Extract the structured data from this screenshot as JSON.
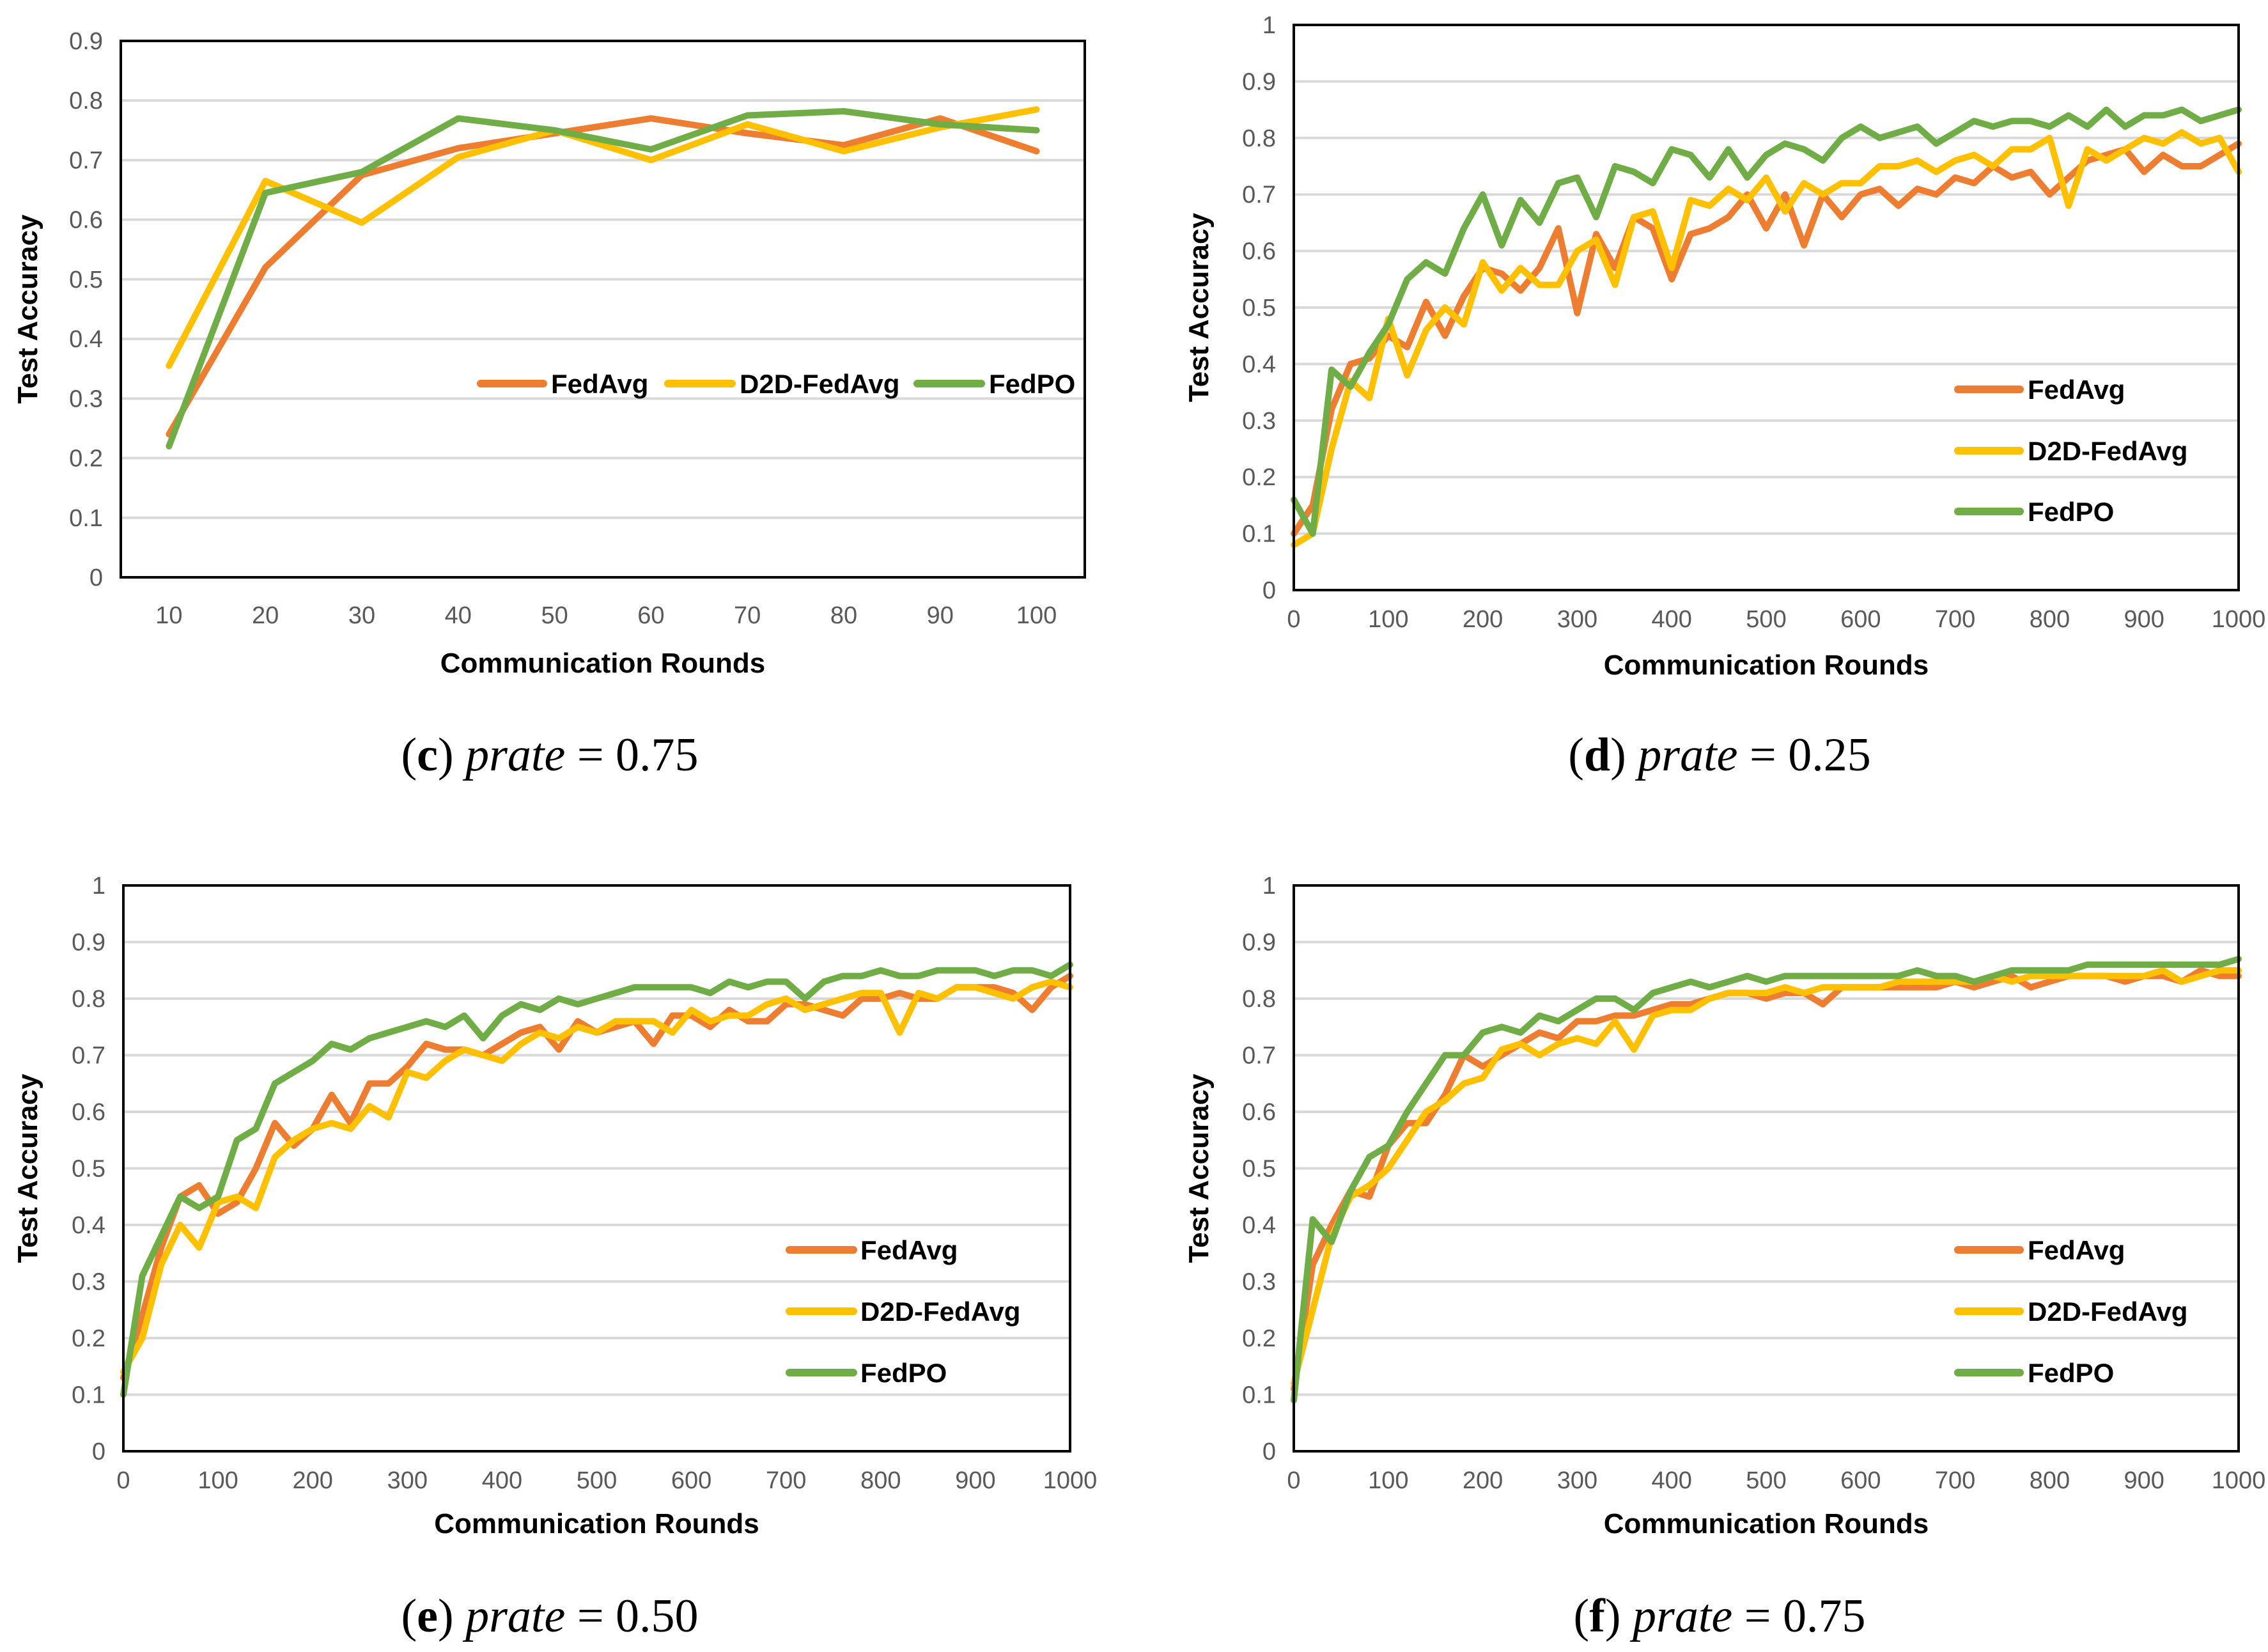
{
  "colors": {
    "FedAvg": "#ED7D31",
    "D2D-FedAvg": "#FFC000",
    "FedPO": "#70AD47",
    "grid": "#D9D9D9"
  },
  "chart_data": [
    {
      "id": "c",
      "type": "line",
      "caption": {
        "label": "c",
        "variable": "prate",
        "relation": "=",
        "value": "0.75"
      },
      "xlabel": "Communication Rounds",
      "ylabel": "Test Accuracy",
      "x_axis": "category",
      "categories": [
        "10",
        "20",
        "30",
        "40",
        "50",
        "60",
        "70",
        "80",
        "90",
        "100"
      ],
      "ylim": [
        0,
        0.9
      ],
      "yticks": [
        "0",
        "0.1",
        "0.2",
        "0.3",
        "0.4",
        "0.5",
        "0.6",
        "0.7",
        "0.8",
        "0.9"
      ],
      "grid": true,
      "legend": "center-right-horizontal",
      "series": [
        {
          "name": "FedAvg",
          "values": [
            0.24,
            0.52,
            0.675,
            0.72,
            0.745,
            0.77,
            0.745,
            0.725,
            0.77,
            0.715
          ]
        },
        {
          "name": "D2D-FedAvg",
          "values": [
            0.355,
            0.665,
            0.595,
            0.705,
            0.75,
            0.7,
            0.76,
            0.715,
            0.755,
            0.785
          ]
        },
        {
          "name": "FedPO",
          "values": [
            0.22,
            0.645,
            0.68,
            0.77,
            0.75,
            0.718,
            0.775,
            0.782,
            0.76,
            0.75
          ]
        }
      ]
    },
    {
      "id": "d",
      "type": "line",
      "caption": {
        "label": "d",
        "variable": "prate",
        "relation": "=",
        "value": "0.25"
      },
      "xlabel": "Communication Rounds",
      "ylabel": "Test Accuracy",
      "x_axis": "numeric",
      "xlim": [
        0,
        1000
      ],
      "x_start": 0,
      "x_step": 20,
      "xticks": [
        "0",
        "100",
        "200",
        "300",
        "400",
        "500",
        "600",
        "700",
        "800",
        "900",
        "1000"
      ],
      "ylim": [
        0,
        1
      ],
      "yticks": [
        "0",
        "0.1",
        "0.2",
        "0.3",
        "0.4",
        "0.5",
        "0.6",
        "0.7",
        "0.8",
        "0.9",
        "1"
      ],
      "grid": true,
      "legend": "right-vertical",
      "series": [
        {
          "name": "FedAvg",
          "values": [
            0.1,
            0.15,
            0.32,
            0.4,
            0.41,
            0.45,
            0.43,
            0.51,
            0.45,
            0.52,
            0.57,
            0.56,
            0.53,
            0.57,
            0.64,
            0.49,
            0.63,
            0.57,
            0.66,
            0.64,
            0.55,
            0.63,
            0.64,
            0.66,
            0.7,
            0.64,
            0.7,
            0.61,
            0.7,
            0.66,
            0.7,
            0.71,
            0.68,
            0.71,
            0.7,
            0.73,
            0.72,
            0.75,
            0.73,
            0.74,
            0.7,
            0.73,
            0.76,
            0.77,
            0.78,
            0.74,
            0.77,
            0.75,
            0.75,
            0.77,
            0.79
          ]
        },
        {
          "name": "D2D-FedAvg",
          "values": [
            0.08,
            0.1,
            0.25,
            0.37,
            0.34,
            0.48,
            0.38,
            0.46,
            0.5,
            0.47,
            0.58,
            0.53,
            0.57,
            0.54,
            0.54,
            0.6,
            0.62,
            0.54,
            0.66,
            0.67,
            0.57,
            0.69,
            0.68,
            0.71,
            0.69,
            0.73,
            0.67,
            0.72,
            0.7,
            0.72,
            0.72,
            0.75,
            0.75,
            0.76,
            0.74,
            0.76,
            0.77,
            0.75,
            0.78,
            0.78,
            0.8,
            0.68,
            0.78,
            0.76,
            0.78,
            0.8,
            0.79,
            0.81,
            0.79,
            0.8,
            0.74
          ]
        },
        {
          "name": "FedPO",
          "values": [
            0.16,
            0.1,
            0.39,
            0.36,
            0.42,
            0.47,
            0.55,
            0.58,
            0.56,
            0.64,
            0.7,
            0.61,
            0.69,
            0.65,
            0.72,
            0.73,
            0.66,
            0.75,
            0.74,
            0.72,
            0.78,
            0.77,
            0.73,
            0.78,
            0.73,
            0.77,
            0.79,
            0.78,
            0.76,
            0.8,
            0.82,
            0.8,
            0.81,
            0.82,
            0.79,
            0.81,
            0.83,
            0.82,
            0.83,
            0.83,
            0.82,
            0.84,
            0.82,
            0.85,
            0.82,
            0.84,
            0.84,
            0.85,
            0.83,
            0.84,
            0.85
          ]
        }
      ]
    },
    {
      "id": "e",
      "type": "line",
      "caption": {
        "label": "e",
        "variable": "prate",
        "relation": "=",
        "value": "0.50"
      },
      "xlabel": "Communication Rounds",
      "ylabel": "Test Accuracy",
      "x_axis": "numeric",
      "xlim": [
        0,
        1000
      ],
      "x_start": 0,
      "x_step": 20,
      "xticks": [
        "0",
        "100",
        "200",
        "300",
        "400",
        "500",
        "600",
        "700",
        "800",
        "900",
        "1000"
      ],
      "ylim": [
        0,
        1
      ],
      "yticks": [
        "0",
        "0.1",
        "0.2",
        "0.3",
        "0.4",
        "0.5",
        "0.6",
        "0.7",
        "0.8",
        "0.9",
        "1"
      ],
      "grid": true,
      "legend": "right-vertical",
      "series": [
        {
          "name": "FedAvg",
          "values": [
            0.13,
            0.24,
            0.36,
            0.45,
            0.47,
            0.42,
            0.44,
            0.5,
            0.58,
            0.54,
            0.57,
            0.63,
            0.58,
            0.65,
            0.65,
            0.68,
            0.72,
            0.71,
            0.71,
            0.7,
            0.72,
            0.74,
            0.75,
            0.71,
            0.76,
            0.74,
            0.75,
            0.76,
            0.72,
            0.77,
            0.77,
            0.75,
            0.78,
            0.76,
            0.76,
            0.79,
            0.79,
            0.78,
            0.77,
            0.8,
            0.8,
            0.81,
            0.8,
            0.8,
            0.82,
            0.82,
            0.82,
            0.81,
            0.78,
            0.82,
            0.84
          ]
        },
        {
          "name": "D2D-FedAvg",
          "values": [
            0.14,
            0.2,
            0.33,
            0.4,
            0.36,
            0.44,
            0.45,
            0.43,
            0.52,
            0.55,
            0.57,
            0.58,
            0.57,
            0.61,
            0.59,
            0.67,
            0.66,
            0.69,
            0.71,
            0.7,
            0.69,
            0.72,
            0.74,
            0.73,
            0.75,
            0.74,
            0.76,
            0.76,
            0.76,
            0.74,
            0.78,
            0.76,
            0.77,
            0.77,
            0.79,
            0.8,
            0.78,
            0.79,
            0.8,
            0.81,
            0.81,
            0.74,
            0.81,
            0.8,
            0.82,
            0.82,
            0.81,
            0.8,
            0.82,
            0.83,
            0.82
          ]
        },
        {
          "name": "FedPO",
          "values": [
            0.1,
            0.31,
            0.38,
            0.45,
            0.43,
            0.45,
            0.55,
            0.57,
            0.65,
            0.67,
            0.69,
            0.72,
            0.71,
            0.73,
            0.74,
            0.75,
            0.76,
            0.75,
            0.77,
            0.73,
            0.77,
            0.79,
            0.78,
            0.8,
            0.79,
            0.8,
            0.81,
            0.82,
            0.82,
            0.82,
            0.82,
            0.81,
            0.83,
            0.82,
            0.83,
            0.83,
            0.8,
            0.83,
            0.84,
            0.84,
            0.85,
            0.84,
            0.84,
            0.85,
            0.85,
            0.85,
            0.84,
            0.85,
            0.85,
            0.84,
            0.86
          ]
        }
      ]
    },
    {
      "id": "f",
      "type": "line",
      "caption": {
        "label": "f",
        "variable": "prate",
        "relation": "=",
        "value": "0.75"
      },
      "xlabel": "Communication Rounds",
      "ylabel": "Test Accuracy",
      "x_axis": "numeric",
      "xlim": [
        0,
        1000
      ],
      "x_start": 0,
      "x_step": 20,
      "xticks": [
        "0",
        "100",
        "200",
        "300",
        "400",
        "500",
        "600",
        "700",
        "800",
        "900",
        "1000"
      ],
      "ylim": [
        0,
        1
      ],
      "yticks": [
        "0",
        "0.1",
        "0.2",
        "0.3",
        "0.4",
        "0.5",
        "0.6",
        "0.7",
        "0.8",
        "0.9",
        "1"
      ],
      "grid": true,
      "legend": "right-vertical",
      "series": [
        {
          "name": "FedAvg",
          "values": [
            0.11,
            0.33,
            0.4,
            0.46,
            0.45,
            0.54,
            0.58,
            0.58,
            0.63,
            0.7,
            0.68,
            0.7,
            0.72,
            0.74,
            0.73,
            0.76,
            0.76,
            0.77,
            0.77,
            0.78,
            0.79,
            0.79,
            0.8,
            0.81,
            0.81,
            0.8,
            0.81,
            0.81,
            0.79,
            0.82,
            0.82,
            0.82,
            0.82,
            0.82,
            0.82,
            0.83,
            0.82,
            0.83,
            0.84,
            0.82,
            0.83,
            0.84,
            0.84,
            0.84,
            0.83,
            0.84,
            0.84,
            0.83,
            0.85,
            0.84,
            0.84
          ]
        },
        {
          "name": "D2D-FedAvg",
          "values": [
            0.12,
            0.25,
            0.38,
            0.45,
            0.47,
            0.5,
            0.55,
            0.6,
            0.62,
            0.65,
            0.66,
            0.71,
            0.72,
            0.7,
            0.72,
            0.73,
            0.72,
            0.76,
            0.71,
            0.77,
            0.78,
            0.78,
            0.8,
            0.81,
            0.81,
            0.81,
            0.82,
            0.81,
            0.82,
            0.82,
            0.82,
            0.82,
            0.83,
            0.83,
            0.83,
            0.83,
            0.83,
            0.84,
            0.83,
            0.84,
            0.84,
            0.84,
            0.84,
            0.84,
            0.84,
            0.84,
            0.85,
            0.83,
            0.84,
            0.85,
            0.85
          ]
        },
        {
          "name": "FedPO",
          "values": [
            0.09,
            0.41,
            0.37,
            0.46,
            0.52,
            0.54,
            0.6,
            0.65,
            0.7,
            0.7,
            0.74,
            0.75,
            0.74,
            0.77,
            0.76,
            0.78,
            0.8,
            0.8,
            0.78,
            0.81,
            0.82,
            0.83,
            0.82,
            0.83,
            0.84,
            0.83,
            0.84,
            0.84,
            0.84,
            0.84,
            0.84,
            0.84,
            0.84,
            0.85,
            0.84,
            0.84,
            0.83,
            0.84,
            0.85,
            0.85,
            0.85,
            0.85,
            0.86,
            0.86,
            0.86,
            0.86,
            0.86,
            0.86,
            0.86,
            0.86,
            0.87
          ]
        }
      ]
    }
  ]
}
